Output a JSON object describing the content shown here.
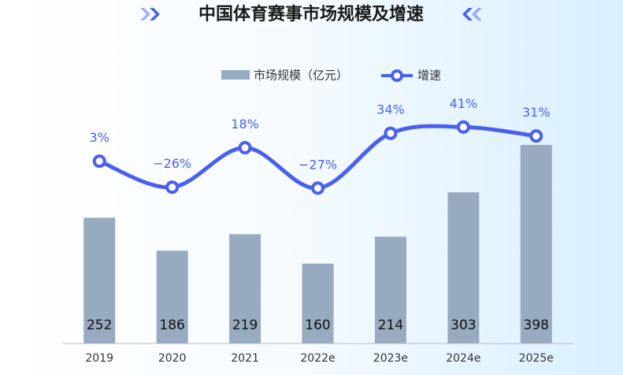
{
  "chart_data": {
    "type": "bar-line",
    "title": "中国体育赛事市场规模及增速",
    "categories": [
      "2019",
      "2020",
      "2021",
      "2022e",
      "2023e",
      "2024e",
      "2025e"
    ],
    "series": [
      {
        "name": "市场规模（亿元）",
        "type": "bar",
        "color": "#97aabf",
        "values": [
          252,
          186,
          219,
          160,
          214,
          303,
          398
        ]
      },
      {
        "name": "增速",
        "type": "line",
        "axis": "y2",
        "color": "#4a5ff0",
        "values": [
          3,
          -26,
          18,
          -27,
          34,
          41,
          31
        ],
        "value_labels": [
          "3%",
          "−26%",
          "18%",
          "−27%",
          "34%",
          "41%",
          "31%"
        ]
      }
    ],
    "ylim": [
      0,
      450
    ],
    "y2lim": [
      -200,
      50
    ]
  }
}
